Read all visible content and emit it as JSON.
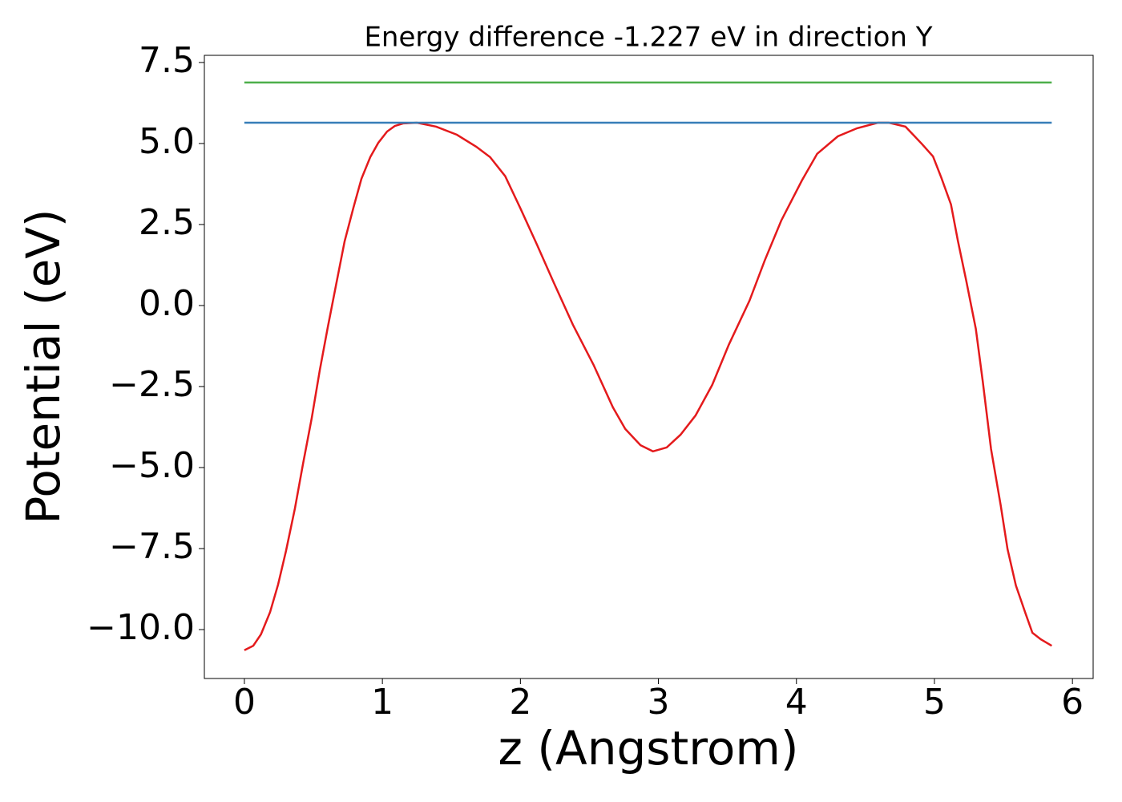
{
  "chart_data": {
    "type": "line",
    "title": "Energy difference -1.227 eV in direction Y",
    "x_label": "z (Angstrom)",
    "y_label": "Potential (eV)",
    "xlim": [
      -0.29,
      6.15
    ],
    "ylim": [
      -11.51,
      7.72
    ],
    "xticks": [
      0,
      1,
      2,
      3,
      4,
      5,
      6
    ],
    "yticks": [
      {
        "value": 7.5,
        "label": "7.5"
      },
      {
        "value": 5,
        "label": "5.0"
      },
      2.5,
      {
        "value": 0,
        "label": "0.0"
      },
      {
        "value": -2.5,
        "label": "−2.5"
      },
      {
        "value": -5,
        "label": "−5.0"
      },
      {
        "value": -7.5,
        "label": "−7.5"
      },
      {
        "value": -10,
        "label": "−10.0"
      }
    ],
    "series": [
      {
        "color": "#e41a1c",
        "x": [
          0,
          0.064,
          0.12,
          0.186,
          0.244,
          0.302,
          0.366,
          0.424,
          0.488,
          0.546,
          0.604,
          0.668,
          0.726,
          0.79,
          0.848,
          0.912,
          0.97,
          1.034,
          1.09,
          1.15,
          1.25,
          1.39,
          1.54,
          1.68,
          1.78,
          1.89,
          2.0,
          2.12,
          2.24,
          2.38,
          2.53,
          2.67,
          2.76,
          2.87,
          2.96,
          3.06,
          3.16,
          3.27,
          3.39,
          3.51,
          3.66,
          3.77,
          3.89,
          4.04,
          4.15,
          4.3,
          4.44,
          4.59,
          4.67,
          4.79,
          4.91,
          4.99,
          5.05,
          5.12,
          5.17,
          5.23,
          5.3,
          5.35,
          5.41,
          5.48,
          5.53,
          5.59,
          5.66,
          5.71,
          5.77,
          5.85
        ],
        "values": [
          -10.64,
          -10.5,
          -10.15,
          -9.46,
          -8.61,
          -7.57,
          -6.26,
          -4.9,
          -3.47,
          -2.0,
          -0.67,
          0.72,
          1.98,
          3.02,
          3.91,
          4.58,
          5.02,
          5.37,
          5.54,
          5.62,
          5.64,
          5.52,
          5.27,
          4.9,
          4.58,
          3.99,
          3.0,
          1.88,
          0.72,
          -0.59,
          -1.83,
          -3.14,
          -3.81,
          -4.31,
          -4.5,
          -4.38,
          -3.99,
          -3.39,
          -2.45,
          -1.21,
          0.15,
          1.39,
          2.62,
          3.86,
          4.68,
          5.22,
          5.47,
          5.64,
          5.64,
          5.52,
          4.98,
          4.6,
          3.94,
          3.12,
          2.0,
          0.77,
          -0.72,
          -2.33,
          -4.43,
          -6.16,
          -7.52,
          -8.64,
          -9.5,
          -10.1,
          -10.3,
          -10.5
        ]
      },
      {
        "color": "#377eb8",
        "x": [
          0,
          5.85
        ],
        "values": [
          5.64,
          5.64
        ]
      },
      {
        "color": "#4daf4a",
        "x": [
          0,
          5.85
        ],
        "values": [
          6.88,
          6.88
        ]
      }
    ]
  }
}
